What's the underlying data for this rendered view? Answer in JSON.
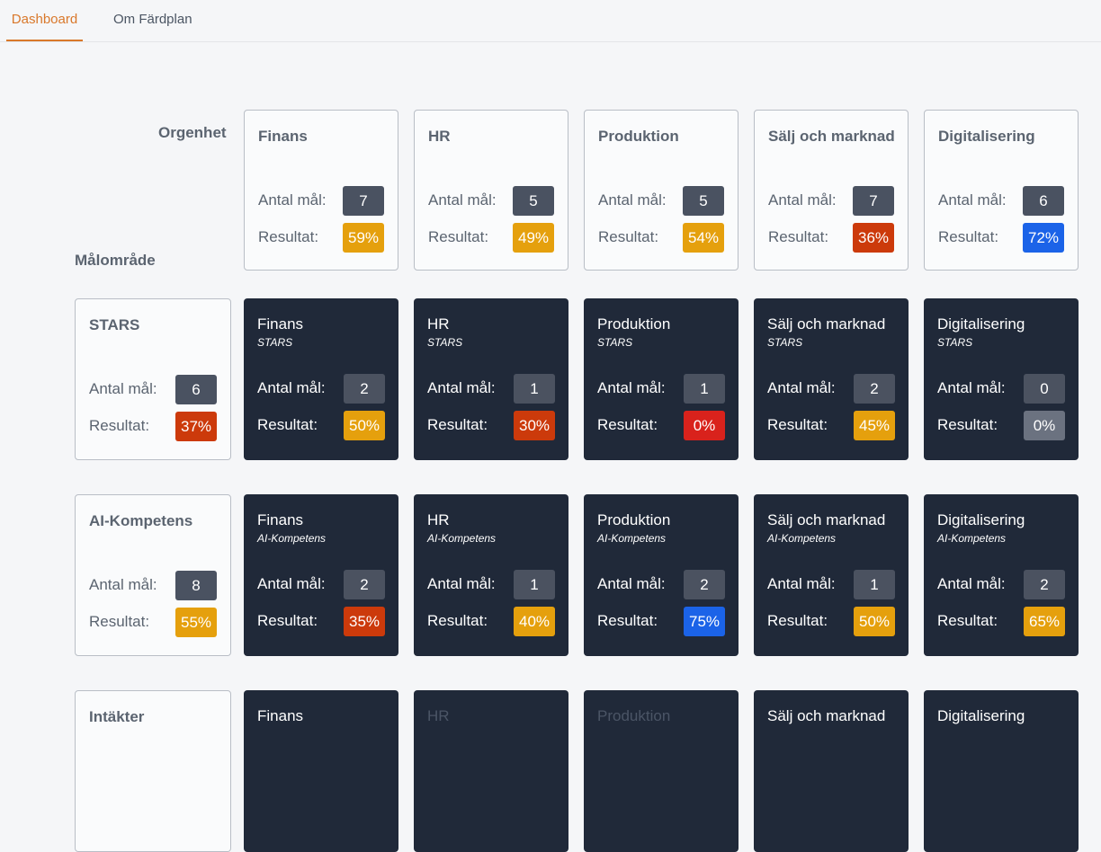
{
  "tabs": [
    {
      "label": "Dashboard",
      "active": true
    },
    {
      "label": "Om Färdplan",
      "active": false
    }
  ],
  "labels": {
    "orgenhet": "Orgenhet",
    "malomrade": "Målområde",
    "antal": "Antal mål:",
    "resultat": "Resultat:"
  },
  "org_units": [
    {
      "name": "Finans",
      "count": "7",
      "result": "59%",
      "color": "#e5a00d"
    },
    {
      "name": "HR",
      "count": "5",
      "result": "49%",
      "color": "#e5a00d"
    },
    {
      "name": "Produktion",
      "count": "5",
      "result": "54%",
      "color": "#e5a00d"
    },
    {
      "name": "Sälj och marknad",
      "count": "7",
      "result": "36%",
      "color": "#cc3a0b"
    },
    {
      "name": "Digitalisering",
      "count": "6",
      "result": "72%",
      "color": "#1b63e8"
    }
  ],
  "goal_areas": [
    {
      "name": "STARS",
      "count": "6",
      "result": "37%",
      "color": "#cc3a0b",
      "cells": [
        {
          "name": "Finans",
          "sub": "STARS",
          "count": "2",
          "result": "50%",
          "color": "#e5a00d"
        },
        {
          "name": "HR",
          "sub": "STARS",
          "count": "1",
          "result": "30%",
          "color": "#cc3a0b"
        },
        {
          "name": "Produktion",
          "sub": "STARS",
          "count": "1",
          "result": "0%",
          "color": "#d9221c"
        },
        {
          "name": "Sälj och marknad",
          "sub": "STARS",
          "count": "2",
          "result": "45%",
          "color": "#e5a00d"
        },
        {
          "name": "Digitalisering",
          "sub": "STARS",
          "count": "0",
          "result": "0%",
          "color": "#6b7280"
        }
      ]
    },
    {
      "name": "AI-Kompetens",
      "count": "8",
      "result": "55%",
      "color": "#e5a00d",
      "cells": [
        {
          "name": "Finans",
          "sub": "AI-Kompetens",
          "count": "2",
          "result": "35%",
          "color": "#cc3a0b"
        },
        {
          "name": "HR",
          "sub": "AI-Kompetens",
          "count": "1",
          "result": "40%",
          "color": "#e5a00d"
        },
        {
          "name": "Produktion",
          "sub": "AI-Kompetens",
          "count": "2",
          "result": "75%",
          "color": "#1b63e8"
        },
        {
          "name": "Sälj och marknad",
          "sub": "AI-Kompetens",
          "count": "1",
          "result": "50%",
          "color": "#e5a00d"
        },
        {
          "name": "Digitalisering",
          "sub": "AI-Kompetens",
          "count": "2",
          "result": "65%",
          "color": "#e5a00d"
        }
      ]
    },
    {
      "name": "Intäkter",
      "cells": [
        {
          "name": "Finans"
        },
        {
          "name": "HR",
          "faded": true
        },
        {
          "name": "Produktion",
          "faded": true
        },
        {
          "name": "Sälj och marknad"
        },
        {
          "name": "Digitalisering"
        }
      ]
    }
  ]
}
